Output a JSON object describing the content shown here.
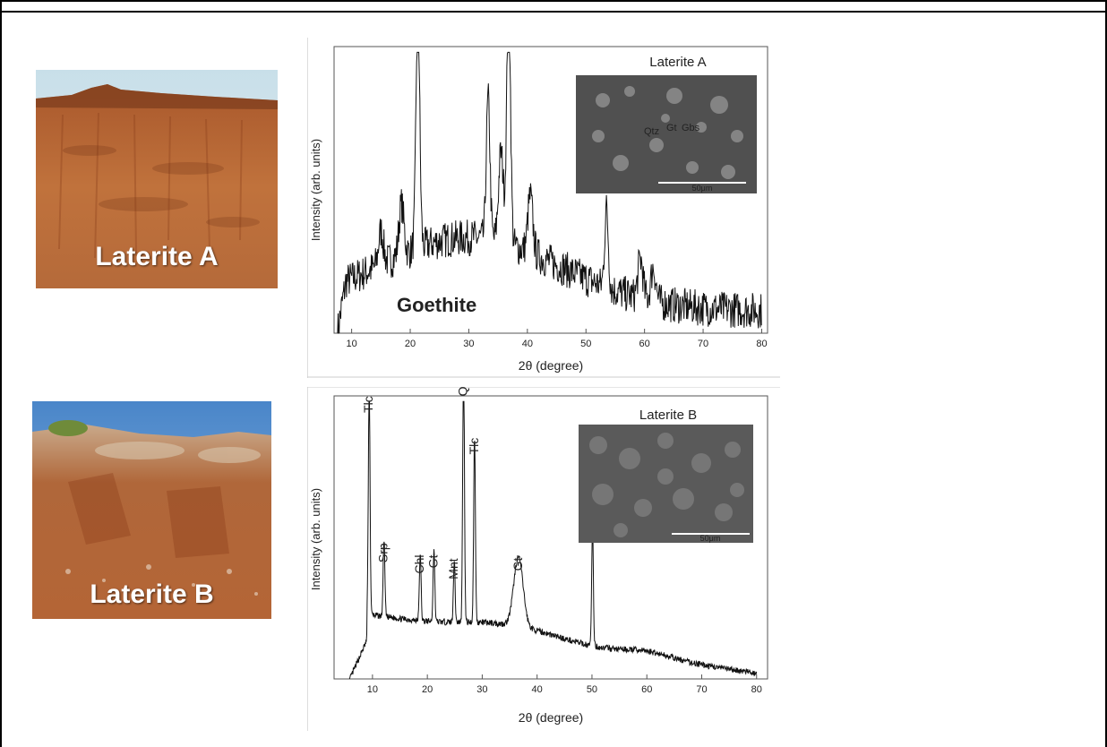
{
  "photos": {
    "a": {
      "caption": "Laterite A"
    },
    "b": {
      "caption": "Laterite B"
    }
  },
  "chart_data": [
    {
      "type": "line",
      "title": "Laterite A",
      "annotation": "Goethite",
      "xlabel": "2θ (degree)",
      "ylabel": "Intensity (arb. units)",
      "xlim": [
        7,
        81
      ],
      "x_ticks": [
        10,
        20,
        30,
        40,
        50,
        60,
        70,
        80
      ],
      "y_ticks_shown": false,
      "peaks": [
        {
          "x": 21.3,
          "label": ""
        },
        {
          "x": 33.3,
          "label": ""
        },
        {
          "x": 36.8,
          "label": ""
        },
        {
          "x": 53.5,
          "label": ""
        }
      ],
      "inset": {
        "type": "sem-image",
        "labels": [
          "Qtz",
          "Gt",
          "Gbs"
        ],
        "scale_bar": "50μm"
      }
    },
    {
      "type": "line",
      "title": "Laterite B",
      "xlabel": "2θ (degree)",
      "ylabel": "Intensity (arb. units)",
      "xlim": [
        3,
        82
      ],
      "x_ticks": [
        10,
        20,
        30,
        40,
        50,
        60,
        70,
        80
      ],
      "y_ticks_shown": false,
      "peaks": [
        {
          "x": 9.4,
          "label": "Tlc"
        },
        {
          "x": 12.1,
          "label": "Srp"
        },
        {
          "x": 18.7,
          "label": "Chl"
        },
        {
          "x": 21.2,
          "label": "Gt"
        },
        {
          "x": 24.9,
          "label": "Mnt"
        },
        {
          "x": 26.6,
          "label": "Qtz"
        },
        {
          "x": 28.6,
          "label": "Tlc"
        },
        {
          "x": 36.6,
          "label": "Gt"
        },
        {
          "x": 50.1,
          "label": ""
        }
      ],
      "inset": {
        "type": "sem-image",
        "scale_bar": "50μm"
      }
    }
  ]
}
